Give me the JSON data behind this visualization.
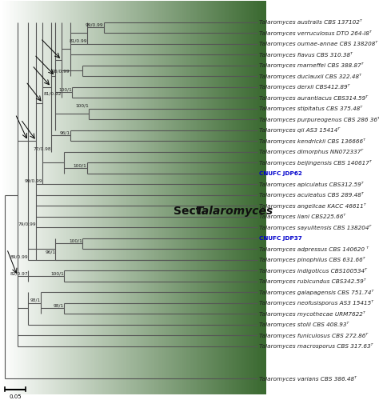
{
  "taxa": [
    {
      "name": "Talaromyces australis CBS 137102ᵀ",
      "y": 31,
      "italic": true,
      "color": "#222222",
      "bold": false
    },
    {
      "name": "Talaromyces verruculosus DTO 264-I8ᵀ",
      "y": 30,
      "italic": true,
      "color": "#222222",
      "bold": false
    },
    {
      "name": "Talaromyces oumae-annae CBS 138208ᵀ",
      "y": 29,
      "italic": true,
      "color": "#222222",
      "bold": false
    },
    {
      "name": "Talaromyces flavus CBS 310.38ᵀ",
      "y": 28,
      "italic": true,
      "color": "#222222",
      "bold": false
    },
    {
      "name": "Talaromyces marneffei CBS 388.87ᵀ",
      "y": 27,
      "italic": true,
      "color": "#222222",
      "bold": false
    },
    {
      "name": "Talaromyces duclauxii CBS 322.48ᵀ",
      "y": 26,
      "italic": true,
      "color": "#222222",
      "bold": false
    },
    {
      "name": "Talaromyces derxii CBS412.89ᵀ",
      "y": 25,
      "italic": true,
      "color": "#222222",
      "bold": false
    },
    {
      "name": "Talaromyces aurantiacus CBS314.59ᵀ",
      "y": 24,
      "italic": true,
      "color": "#222222",
      "bold": false
    },
    {
      "name": "Talaromyces stipitatus CBS 375.48ᵀ",
      "y": 23,
      "italic": true,
      "color": "#222222",
      "bold": false
    },
    {
      "name": "Talaromyces purpureogenus CBS 286 36ᵀ",
      "y": 22,
      "italic": true,
      "color": "#222222",
      "bold": false
    },
    {
      "name": "Talaromyces qii AS3 15414ᵀ",
      "y": 21,
      "italic": true,
      "color": "#222222",
      "bold": false
    },
    {
      "name": "Talaromyces kendrickii CBS 136666ᵀ",
      "y": 20,
      "italic": true,
      "color": "#222222",
      "bold": false
    },
    {
      "name": "Talaromyces dimorphus NN072337ᵀ",
      "y": 19,
      "italic": true,
      "color": "#222222",
      "bold": false
    },
    {
      "name": "Talaromyces beijingensis CBS 140617ᵀ",
      "y": 18,
      "italic": true,
      "color": "#222222",
      "bold": false
    },
    {
      "name": "CNUFC JDP62",
      "y": 17,
      "italic": false,
      "color": "#0000cc",
      "bold": true
    },
    {
      "name": "Talaromyces apiculatus CBS312.59ᵀ",
      "y": 16,
      "italic": true,
      "color": "#222222",
      "bold": false
    },
    {
      "name": "Talaromyces aculeatus CBS 289.48ᵀ",
      "y": 15,
      "italic": true,
      "color": "#222222",
      "bold": false
    },
    {
      "name": "Talaromyces angelicae KACC 46611ᵀ",
      "y": 14,
      "italic": true,
      "color": "#222222",
      "bold": false
    },
    {
      "name": "Talaromyces liani CBS225.66ᵀ",
      "y": 13,
      "italic": true,
      "color": "#222222",
      "bold": false
    },
    {
      "name": "Talaromyces sayulitensis CBS 138204ᵀ",
      "y": 12,
      "italic": true,
      "color": "#222222",
      "bold": false
    },
    {
      "name": "CNUFC JDP37",
      "y": 11,
      "italic": false,
      "color": "#0000cc",
      "bold": true
    },
    {
      "name": "Talaromyces adpressus CBS 140620 ᵀ",
      "y": 10,
      "italic": true,
      "color": "#222222",
      "bold": false
    },
    {
      "name": "Talaromyces pinophilus CBS 631.66ᵀ",
      "y": 9,
      "italic": true,
      "color": "#222222",
      "bold": false
    },
    {
      "name": "Talaromyces indigoticus CBS100534ᵀ",
      "y": 8,
      "italic": true,
      "color": "#222222",
      "bold": false
    },
    {
      "name": "Talaromyces rubicundus CBS342.59ᵀ",
      "y": 7,
      "italic": true,
      "color": "#222222",
      "bold": false
    },
    {
      "name": "Talaromyces galapagensis CBS 751.74ᵀ",
      "y": 6,
      "italic": true,
      "color": "#222222",
      "bold": false
    },
    {
      "name": "Talaromyces neofusisporus AS3 15415ᵀ",
      "y": 5,
      "italic": true,
      "color": "#222222",
      "bold": false
    },
    {
      "name": "Talaromyces mycothecae URM7622ᵀ",
      "y": 4,
      "italic": true,
      "color": "#222222",
      "bold": false
    },
    {
      "name": "Talaromyces stolii CBS 408.93ᵀ",
      "y": 3,
      "italic": true,
      "color": "#222222",
      "bold": false
    },
    {
      "name": "Talaromyces funiculosus CBS 272.86ᵀ",
      "y": 2,
      "italic": true,
      "color": "#222222",
      "bold": false
    },
    {
      "name": "Talaromyces macrosporus CBS 317.63ᵀ",
      "y": 1,
      "italic": true,
      "color": "#222222",
      "bold": false
    },
    {
      "name": "Talaromyces varians CBS 386.48ᵀ",
      "y": -2,
      "italic": true,
      "color": "#222222",
      "bold": false
    }
  ],
  "line_color": "#555555",
  "line_width": 0.8,
  "font_size": 5.2,
  "sect_fontsize": 10,
  "bg_colors": [
    "#ffffff",
    "#3a6930"
  ],
  "scale_label": "0.05"
}
